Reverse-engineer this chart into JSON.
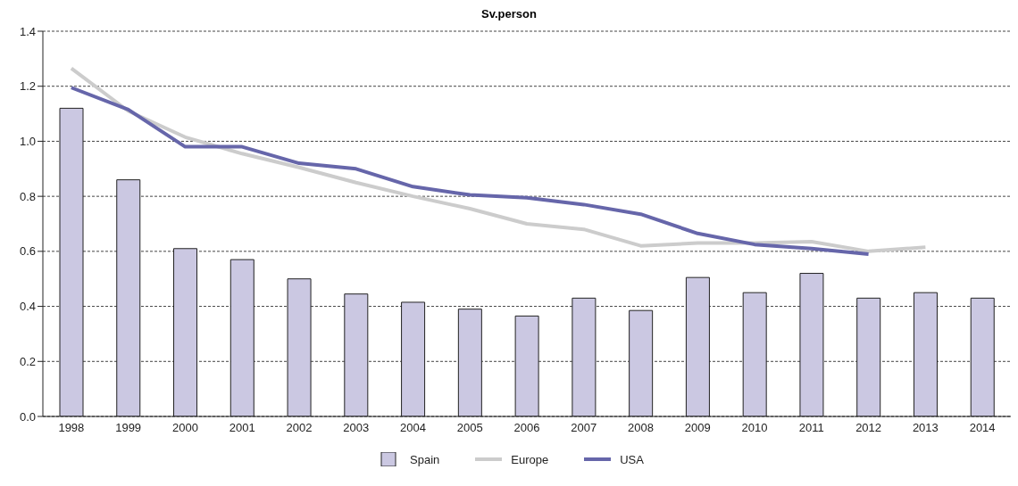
{
  "chart_data": {
    "type": "bar",
    "title": "Sv.person",
    "categories": [
      "1998",
      "1999",
      "2000",
      "2001",
      "2002",
      "2003",
      "2004",
      "2005",
      "2006",
      "2007",
      "2008",
      "2009",
      "2010",
      "2011",
      "2012",
      "2013",
      "2014"
    ],
    "series": [
      {
        "name": "Spain",
        "color": "#cbc8e2",
        "values": [
          1.12,
          0.86,
          0.61,
          0.57,
          0.5,
          0.445,
          0.415,
          0.39,
          0.365,
          0.43,
          0.385,
          0.505,
          0.45,
          0.52,
          0.43,
          0.45,
          0.43
        ]
      },
      {
        "name": "Europe",
        "type": "line",
        "color": "#cccccc",
        "values": [
          1.265,
          1.11,
          1.015,
          0.955,
          0.905,
          0.85,
          0.8,
          0.755,
          0.7,
          0.68,
          0.62,
          0.63,
          0.63,
          0.635,
          0.6,
          0.615,
          null
        ]
      },
      {
        "name": "USA",
        "type": "line",
        "color": "#6666aa",
        "values": [
          1.195,
          1.115,
          0.98,
          0.98,
          0.92,
          0.9,
          0.835,
          0.805,
          0.795,
          0.77,
          0.735,
          0.665,
          0.625,
          0.61,
          0.59,
          null,
          null
        ]
      }
    ],
    "ylim": [
      0,
      1.4
    ],
    "yticks": [
      {
        "value": 0,
        "label": "0.0"
      },
      {
        "value": 0.2,
        "label": "0.2"
      },
      {
        "value": 0.4,
        "label": "0.4"
      },
      {
        "value": 0.6,
        "label": "0.6"
      },
      {
        "value": 0.8,
        "label": "0.8"
      },
      {
        "value": 1,
        "label": "1.0"
      },
      {
        "value": 1.2,
        "label": "1.2"
      },
      {
        "value": 1.4,
        "label": "1.4"
      }
    ],
    "grid": "y",
    "legend": "bottom",
    "marker": "none",
    "line_style": "solid"
  }
}
